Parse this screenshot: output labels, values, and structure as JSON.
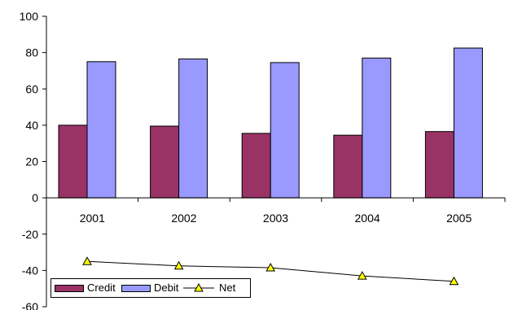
{
  "chart_data": {
    "type": "bar",
    "categories": [
      "2001",
      "2002",
      "2003",
      "2004",
      "2005"
    ],
    "series": [
      {
        "name": "Credit",
        "kind": "bar",
        "color": "#993366",
        "values": [
          40,
          39.5,
          35.5,
          34.5,
          36.5
        ]
      },
      {
        "name": "Debit",
        "kind": "bar",
        "color": "#9999FF",
        "values": [
          75,
          76.5,
          74.5,
          77,
          82.5
        ]
      },
      {
        "name": "Net",
        "kind": "line",
        "color": "#000000",
        "marker": "triangle",
        "marker_color": "#FFFF00",
        "values": [
          -35,
          -37.5,
          -38.5,
          -43,
          -46
        ]
      }
    ],
    "ylim": [
      -60,
      100
    ],
    "yticks": [
      "-60",
      "-40",
      "-20",
      "0",
      "20",
      "40",
      "60",
      "80",
      "100"
    ],
    "grid": false,
    "legend_position": "bottom-left",
    "title": "",
    "xlabel": "",
    "ylabel": ""
  }
}
